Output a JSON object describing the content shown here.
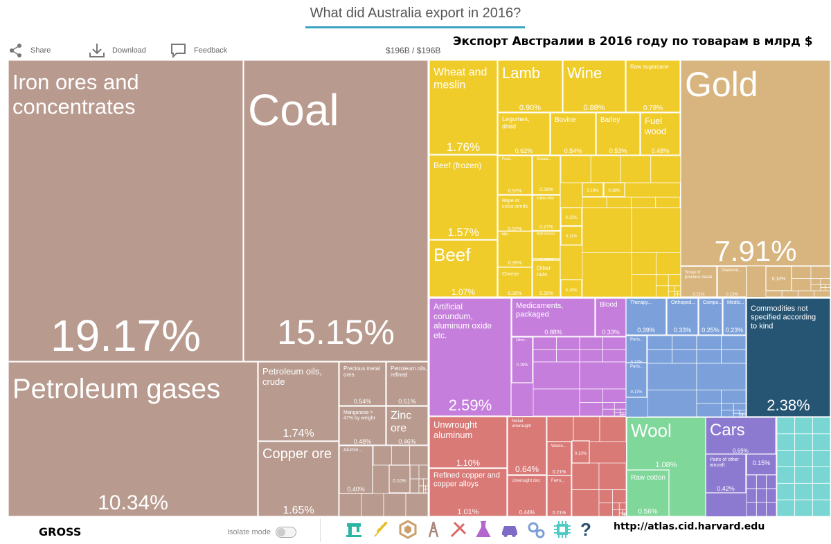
{
  "header": {
    "title": "What did Australia export in 2016?",
    "total": "$196B / $196B",
    "ru_title": "Экспорт Австралии в 2016 году по товарам в млрд $",
    "share_label": "Share",
    "download_label": "Download",
    "feedback_label": "Feedback"
  },
  "footer": {
    "gross_label": "GROSS",
    "isolate_label": "Isolate mode",
    "isolate_on": false,
    "url": "http://atlas.cid.harvard.edu",
    "help": "?",
    "category_icons": [
      "textiles-icon",
      "vegetables-icon",
      "stone-icon",
      "minerals-icon",
      "metals-icon",
      "chemicals-icon",
      "vehicles-icon",
      "machinery-icon",
      "electronics-icon"
    ]
  },
  "colors": {
    "minerals": "#b89a8e",
    "agriculture": "#f0cc2b",
    "stone": "#d8b57f",
    "chemicals": "#c57edb",
    "services": "#7ca1da",
    "other": "#265473",
    "metals": "#d97a77",
    "textiles": "#7fd89a",
    "vehicles": "#8c7ad1",
    "electronics": "#79d6d3"
  },
  "chart_data": {
    "type": "treemap",
    "unit": "% of total exports",
    "items": [
      {
        "name": "Iron ores and concentrates",
        "value": 19.17,
        "label": "19.17%",
        "group": "minerals"
      },
      {
        "name": "Coal",
        "value": 15.15,
        "label": "15.15%",
        "group": "minerals"
      },
      {
        "name": "Petroleum gases",
        "value": 10.34,
        "label": "10.34%",
        "group": "minerals"
      },
      {
        "name": "Petroleum oils, crude",
        "value": 1.74,
        "label": "1.74%",
        "group": "minerals"
      },
      {
        "name": "Copper ore",
        "value": 1.65,
        "label": "1.65%",
        "group": "minerals"
      },
      {
        "name": "Precious metal ores",
        "value": 0.54,
        "label": "0.54%",
        "group": "minerals"
      },
      {
        "name": "Petroleum oils, refined",
        "value": 0.51,
        "label": "0.51%",
        "group": "minerals"
      },
      {
        "name": "Manganese > 47% by weight",
        "value": 0.48,
        "label": "0.48%",
        "group": "minerals"
      },
      {
        "name": "Zinc ore",
        "value": 0.46,
        "label": "0.46%",
        "group": "minerals"
      },
      {
        "name": "Alumina",
        "name_display": "Alumin...",
        "value": 0.4,
        "label": "0.40%",
        "group": "minerals"
      },
      {
        "name": "",
        "value": 0.1,
        "label": "0.10%",
        "group": "minerals"
      },
      {
        "name": "Wheat and meslin",
        "value": 1.76,
        "label": "1.76%",
        "group": "agriculture"
      },
      {
        "name": "Beef (frozen)",
        "value": 1.57,
        "label": "1.57%",
        "group": "agriculture"
      },
      {
        "name": "Beef",
        "value": 1.07,
        "label": "1.07%",
        "group": "agriculture"
      },
      {
        "name": "Lamb",
        "value": 0.9,
        "label": "0.90%",
        "group": "agriculture"
      },
      {
        "name": "Wine",
        "value": 0.88,
        "label": "0.88%",
        "group": "agriculture"
      },
      {
        "name": "Raw sugarcane",
        "value": 0.78,
        "label": "0.78%",
        "group": "agriculture"
      },
      {
        "name": "Legumes, dried",
        "value": 0.62,
        "label": "0.62%",
        "group": "agriculture"
      },
      {
        "name": "Bovine",
        "value": 0.54,
        "label": "0.54%",
        "group": "agriculture"
      },
      {
        "name": "Barley",
        "value": 0.53,
        "label": "0.53%",
        "group": "agriculture"
      },
      {
        "name": "Fuel wood",
        "value": 0.48,
        "label": "0.48%",
        "group": "agriculture"
      },
      {
        "name": "Food...",
        "value": 0.37,
        "label": "0.37%",
        "group": "agriculture"
      },
      {
        "name": "Crustac...",
        "value": 0.28,
        "label": "0.28%",
        "group": "agriculture"
      },
      {
        "name": "Rape or colza seeds",
        "value": 0.37,
        "label": "0.37%",
        "group": "agriculture"
      },
      {
        "name": "Edible offal",
        "value": 0.27,
        "label": "0.27%",
        "group": "agriculture"
      },
      {
        "name": "Milk",
        "value": 0.35,
        "label": "0.35%",
        "group": "agriculture"
      },
      {
        "name": "Malt extract",
        "value": 0.26,
        "label": "0.26%",
        "group": "agriculture"
      },
      {
        "name": "Cheese",
        "value": 0.3,
        "label": "0.30%",
        "group": "agriculture"
      },
      {
        "name": "Other nuts",
        "value": 0.26,
        "label": "0.26%",
        "group": "agriculture"
      },
      {
        "name": "",
        "value": 0.19,
        "label": "0.19%",
        "group": "agriculture"
      },
      {
        "name": "",
        "value": 0.18,
        "label": "0.18%",
        "group": "agriculture"
      },
      {
        "name": "",
        "value": 0.12,
        "label": "0.12%",
        "group": "agriculture"
      },
      {
        "name": "",
        "value": 0.11,
        "label": "0.11%",
        "group": "agriculture"
      },
      {
        "name": "",
        "value": 0.1,
        "label": "0.10%",
        "group": "agriculture"
      },
      {
        "name": "Gold",
        "value": 7.91,
        "label": "7.91%",
        "group": "stone"
      },
      {
        "name": "Scrap of precious metal",
        "value": 0.21,
        "label": "0.21%",
        "group": "stone"
      },
      {
        "name": "Diamond...",
        "value": 0.12,
        "label": "0.12%",
        "group": "stone"
      },
      {
        "name": "",
        "value": 0.1,
        "label": "0.10%",
        "group": "stone"
      },
      {
        "name": "Artificial corundum, aluminum oxide etc.",
        "value": 2.59,
        "label": "2.59%",
        "group": "chemicals"
      },
      {
        "name": "Medicaments, packaged",
        "value": 0.88,
        "label": "0.88%",
        "group": "chemicals"
      },
      {
        "name": "Blood",
        "value": 0.33,
        "label": "0.33%",
        "group": "chemicals"
      },
      {
        "name": "Other...",
        "value": 0.19,
        "label": "0.19%",
        "group": "chemicals"
      },
      {
        "name": "Therapy...",
        "value": 0.39,
        "label": "0.39%",
        "group": "services"
      },
      {
        "name": "Orthoped...",
        "value": 0.33,
        "label": "0.33%",
        "group": "services"
      },
      {
        "name": "Compu...",
        "value": 0.25,
        "label": "0.25%",
        "group": "services"
      },
      {
        "name": "Medic...",
        "value": 0.23,
        "label": "0.23%",
        "group": "services"
      },
      {
        "name": "Parts...",
        "value": 0.17,
        "label": "0.17%",
        "group": "services"
      },
      {
        "name": "Parts...",
        "value": 0.17,
        "label": "0.17%",
        "group": "services"
      },
      {
        "name": "Commodities not specified according to kind",
        "value": 2.38,
        "label": "2.38%",
        "group": "other"
      },
      {
        "name": "Unwrought aluminum",
        "value": 1.1,
        "label": "1.10%",
        "group": "metals"
      },
      {
        "name": "Refined copper and copper alloys",
        "value": 1.01,
        "label": "1.01%",
        "group": "metals"
      },
      {
        "name": "Nickel unwrought",
        "value": 0.64,
        "label": "0.64%",
        "group": "metals"
      },
      {
        "name": "Unwrought zinc",
        "value": 0.44,
        "label": "0.44%",
        "group": "metals"
      },
      {
        "name": "Waste...",
        "value": 0.21,
        "label": "0.21%",
        "group": "metals"
      },
      {
        "name": "Ferro...",
        "value": 0.21,
        "label": "0.21%",
        "group": "metals"
      },
      {
        "name": "",
        "value": 0.1,
        "label": "0.10%",
        "group": "metals"
      },
      {
        "name": "Wool",
        "value": 1.08,
        "label": "1.08%",
        "group": "textiles"
      },
      {
        "name": "Raw cotton",
        "value": 0.56,
        "label": "0.56%",
        "group": "textiles"
      },
      {
        "name": "Cars",
        "value": 0.69,
        "label": "0.69%",
        "group": "vehicles"
      },
      {
        "name": "Parts of other aircraft",
        "value": 0.42,
        "label": "0.42%",
        "group": "vehicles"
      },
      {
        "name": "",
        "value": 0.15,
        "label": "0.15%",
        "group": "vehicles"
      }
    ]
  }
}
